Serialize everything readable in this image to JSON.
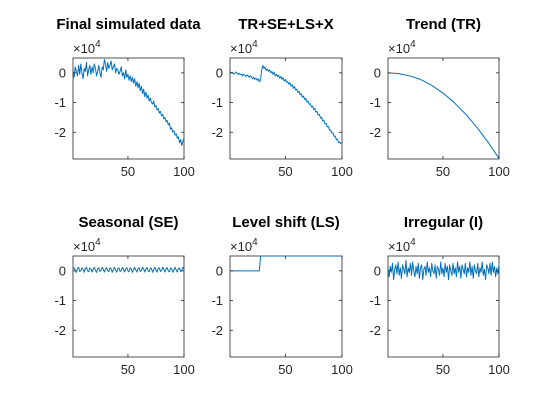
{
  "figure": {
    "background": "#ffffff",
    "line_color": "#0072BD",
    "axis_color": "#262626",
    "exponent_label": "×10",
    "exponent_power": "4"
  },
  "chart_data": [
    {
      "type": "line",
      "title": "Final simulated data",
      "xlabel": "",
      "ylabel": "",
      "xlim": [
        1,
        100
      ],
      "ylim": [
        -2.9,
        0.5
      ],
      "xticks": [
        50,
        100
      ],
      "yticks": [
        0,
        -1,
        -2
      ],
      "ytick_labels": [
        "0",
        "-1",
        "-2"
      ],
      "y_scale_exponent": 4,
      "x": "1..100",
      "values": [
        0.1,
        -0.15,
        0.2,
        0.05,
        -0.1,
        0.25,
        -0.05,
        0.3,
        0.0,
        -0.2,
        0.15,
        0.05,
        0.35,
        -0.1,
        0.1,
        0.25,
        -0.05,
        0.2,
        0.0,
        0.3,
        0.15,
        -0.1,
        0.05,
        0.25,
        0.0,
        -0.15,
        0.2,
        0.1,
        0.45,
        0.3,
        0.05,
        0.35,
        0.15,
        0.25,
        0.4,
        0.1,
        0.2,
        0.3,
        0.0,
        0.15,
        0.1,
        -0.05,
        0.05,
        0.2,
        -0.1,
        0.0,
        -0.2,
        0.1,
        -0.15,
        -0.05,
        -0.25,
        -0.1,
        -0.3,
        -0.15,
        -0.35,
        -0.2,
        -0.45,
        -0.3,
        -0.5,
        -0.35,
        -0.6,
        -0.45,
        -0.7,
        -0.55,
        -0.8,
        -0.65,
        -0.85,
        -0.75,
        -0.95,
        -0.85,
        -1.0,
        -1.05,
        -0.95,
        -1.15,
        -1.1,
        -1.25,
        -1.2,
        -1.35,
        -1.3,
        -1.45,
        -1.4,
        -1.55,
        -1.5,
        -1.65,
        -1.6,
        -1.75,
        -1.7,
        -1.9,
        -1.85,
        -2.0,
        -1.95,
        -2.1,
        -2.05,
        -2.2,
        -2.15,
        -2.35,
        -2.25,
        -2.45,
        -2.3,
        -2.2
      ]
    },
    {
      "type": "line",
      "title": "TR+SE+LS+X",
      "xlabel": "",
      "ylabel": "",
      "xlim": [
        1,
        100
      ],
      "ylim": [
        -2.9,
        0.5
      ],
      "xticks": [
        50,
        100
      ],
      "yticks": [
        0,
        -1,
        -2
      ],
      "ytick_labels": [
        "0",
        "-1",
        "-2"
      ],
      "y_scale_exponent": 4,
      "x": "1..100",
      "values": [
        0.05,
        0.0,
        0.02,
        -0.04,
        -0.03,
        0.03,
        0.0,
        -0.05,
        -0.02,
        -0.06,
        -0.04,
        -0.1,
        -0.05,
        -0.08,
        -0.12,
        -0.07,
        -0.1,
        -0.15,
        -0.1,
        -0.14,
        -0.2,
        -0.15,
        -0.22,
        -0.18,
        -0.25,
        -0.2,
        -0.3,
        -0.24,
        0.1,
        0.25,
        0.15,
        0.2,
        0.08,
        0.13,
        0.05,
        0.1,
        0.0,
        0.05,
        -0.05,
        0.02,
        -0.1,
        -0.05,
        -0.12,
        -0.08,
        -0.18,
        -0.12,
        -0.22,
        -0.16,
        -0.28,
        -0.22,
        -0.32,
        -0.3,
        -0.38,
        -0.33,
        -0.45,
        -0.4,
        -0.52,
        -0.46,
        -0.58,
        -0.55,
        -0.66,
        -0.62,
        -0.74,
        -0.7,
        -0.82,
        -0.78,
        -0.9,
        -0.86,
        -0.98,
        -0.95,
        -1.06,
        -1.04,
        -1.15,
        -1.12,
        -1.24,
        -1.2,
        -1.32,
        -1.3,
        -1.42,
        -1.4,
        -1.52,
        -1.5,
        -1.62,
        -1.6,
        -1.72,
        -1.7,
        -1.82,
        -1.8,
        -1.93,
        -1.92,
        -2.03,
        -2.02,
        -2.14,
        -2.13,
        -2.25,
        -2.23,
        -2.35,
        -2.33,
        -2.38,
        -2.36
      ]
    },
    {
      "type": "line",
      "title": "Trend (TR)",
      "xlabel": "",
      "ylabel": "",
      "xlim": [
        1,
        100
      ],
      "ylim": [
        -2.9,
        0.5
      ],
      "xticks": [
        50,
        100
      ],
      "yticks": [
        0,
        -1,
        -2
      ],
      "ytick_labels": [
        "0",
        "-1",
        "-2"
      ],
      "y_scale_exponent": 4,
      "x": [
        1,
        10,
        20,
        30,
        40,
        50,
        60,
        70,
        80,
        90,
        100
      ],
      "values": [
        0.0,
        -0.02,
        -0.1,
        -0.22,
        -0.42,
        -0.68,
        -1.0,
        -1.38,
        -1.82,
        -2.32,
        -2.88
      ]
    },
    {
      "type": "line",
      "title": "Seasonal (SE)",
      "xlabel": "",
      "ylabel": "",
      "xlim": [
        1,
        100
      ],
      "ylim": [
        -2.9,
        0.5
      ],
      "xticks": [
        50,
        100
      ],
      "yticks": [
        0,
        -1,
        -2
      ],
      "ytick_labels": [
        "0",
        "-1",
        "-2"
      ],
      "y_scale_exponent": 4,
      "x": "1..100",
      "values": [
        0.05,
        0.1,
        0.02,
        -0.05,
        0.08,
        0.12,
        -0.02,
        0.0,
        0.1,
        0.05,
        -0.05,
        0.08,
        0.12,
        0.0,
        -0.03,
        0.1,
        0.06,
        -0.04,
        0.05,
        0.12,
        0.02,
        -0.05,
        0.08,
        0.1,
        -0.02,
        0.02,
        0.12,
        0.05,
        -0.04,
        0.06,
        0.11,
        0.0,
        -0.03,
        0.1,
        0.07,
        -0.05,
        0.04,
        0.12,
        0.03,
        -0.04,
        0.08,
        0.1,
        -0.02,
        0.01,
        0.12,
        0.06,
        -0.04,
        0.06,
        0.11,
        0.0,
        -0.03,
        0.1,
        0.07,
        -0.05,
        0.04,
        0.12,
        0.03,
        -0.04,
        0.08,
        0.1,
        -0.02,
        0.01,
        0.12,
        0.06,
        -0.04,
        0.06,
        0.11,
        0.0,
        -0.03,
        0.1,
        0.07,
        -0.05,
        0.04,
        0.12,
        0.03,
        -0.04,
        0.08,
        0.1,
        -0.02,
        0.01,
        0.12,
        0.06,
        -0.04,
        0.06,
        0.11,
        0.0,
        -0.03,
        0.1,
        0.07,
        -0.05,
        0.04,
        0.12,
        0.03,
        -0.04,
        0.08,
        0.1,
        -0.02,
        0.01,
        0.12,
        0.06
      ]
    },
    {
      "type": "line",
      "title": "Level shift (LS)",
      "xlabel": "",
      "ylabel": "",
      "xlim": [
        1,
        100
      ],
      "ylim": [
        -2.9,
        0.5
      ],
      "xticks": [
        50,
        100
      ],
      "yticks": [
        0,
        -1,
        -2
      ],
      "ytick_labels": [
        "0",
        "-1",
        "-2"
      ],
      "y_scale_exponent": 4,
      "x": [
        1,
        27,
        28,
        100
      ],
      "values": [
        0,
        0,
        0.5,
        0.5
      ]
    },
    {
      "type": "line",
      "title": "Irregular (I)",
      "xlabel": "",
      "ylabel": "",
      "xlim": [
        1,
        100
      ],
      "ylim": [
        -2.9,
        0.5
      ],
      "xticks": [
        50,
        100
      ],
      "yticks": [
        0,
        -1,
        -2
      ],
      "ytick_labels": [
        "0",
        "-1",
        "-2"
      ],
      "y_scale_exponent": 4,
      "x": "1..100",
      "values": [
        0.1,
        -0.2,
        0.15,
        -0.05,
        0.25,
        -0.3,
        0.05,
        0.2,
        -0.1,
        0.3,
        -0.15,
        0.1,
        -0.25,
        0.2,
        0.05,
        -0.1,
        0.35,
        -0.2,
        0.1,
        -0.05,
        0.25,
        -0.15,
        0.3,
        0.0,
        -0.2,
        0.15,
        -0.1,
        0.25,
        -0.25,
        0.1,
        0.2,
        -0.3,
        0.05,
        0.15,
        -0.15,
        0.3,
        -0.05,
        0.1,
        -0.2,
        0.25,
        0.0,
        -0.1,
        0.2,
        -0.25,
        0.15,
        0.05,
        -0.15,
        0.3,
        -0.1,
        0.1,
        -0.2,
        0.25,
        -0.05,
        0.15,
        -0.3,
        0.2,
        0.0,
        -0.15,
        0.25,
        -0.1,
        0.1,
        -0.2,
        0.3,
        -0.05,
        0.15,
        -0.25,
        0.2,
        0.05,
        -0.1,
        0.25,
        -0.2,
        0.1,
        -0.05,
        0.3,
        -0.15,
        0.15,
        -0.25,
        0.2,
        0.0,
        -0.1,
        0.25,
        -0.2,
        0.1,
        -0.05,
        0.3,
        -0.15,
        0.05,
        -0.3,
        0.2,
        0.1,
        -0.1,
        0.25,
        -0.15,
        0.3,
        -0.05,
        0.15,
        -0.2,
        0.1,
        -0.1,
        0.2
      ]
    }
  ]
}
